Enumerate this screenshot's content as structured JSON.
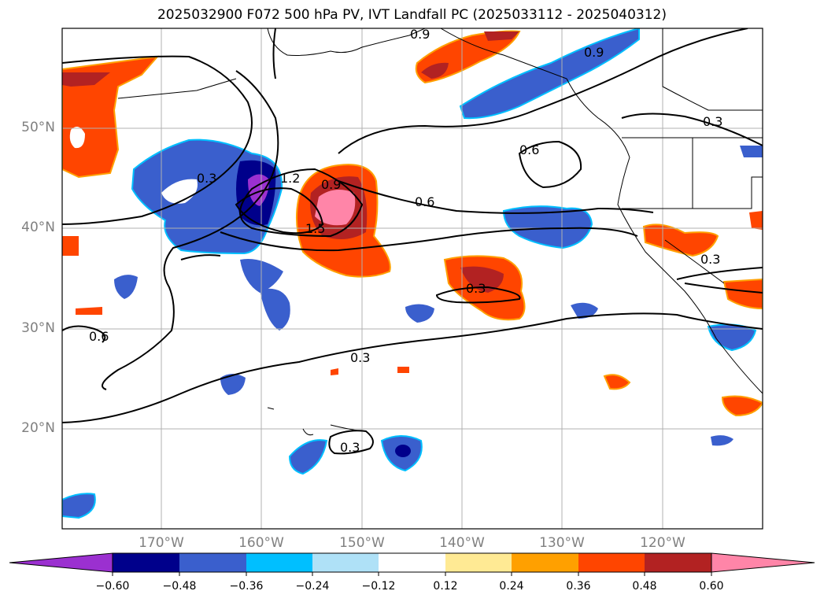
{
  "title": "2025032900 F072 500 hPa PV, IVT Landfall PC (2025033112 - 2025040312)",
  "lat_labels": [
    "50°N",
    "40°N",
    "30°N",
    "20°N"
  ],
  "lon_labels": [
    "170°W",
    "160°W",
    "150°W",
    "140°W",
    "130°W",
    "120°W"
  ],
  "contour_labels": [
    "0.9",
    "0.9",
    "0.3",
    "0.3",
    "1.2",
    "0.9",
    "1.5",
    "0.6",
    "0.6",
    "0.3",
    "0.3",
    "0.6",
    "0.3",
    "0.3"
  ],
  "colorbar": {
    "ticks": [
      "−0.60",
      "−0.48",
      "−0.36",
      "−0.24",
      "−0.12",
      "0.12",
      "0.24",
      "0.36",
      "0.48",
      "0.60"
    ],
    "colors": [
      "#9b30d0",
      "#00008b",
      "#3a5fcd",
      "#00bfff",
      "#afe1f7",
      "#ffffff",
      "#ffea94",
      "#ffa000",
      "#ff4500",
      "#b22222",
      "#ff85a8"
    ]
  },
  "colors": {
    "neg_strong": "#00008b",
    "neg_mid": "#3a5fcd",
    "neg_light": "#00bfff",
    "pos_light": "#ffa000",
    "pos_mid": "#ff4500",
    "pos_strong": "#b22222",
    "pos_max": "#ff85a8",
    "purple": "#9b30d0"
  }
}
